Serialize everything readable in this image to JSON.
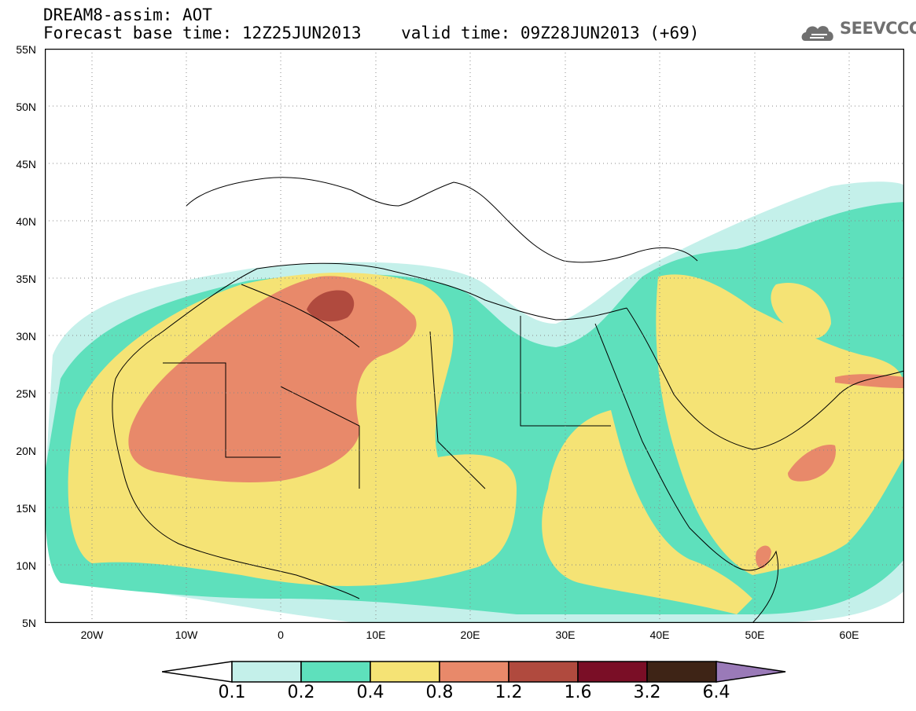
{
  "title": {
    "line1": "DREAM8-assim: AOT",
    "line2": "Forecast base time: 12Z25JUN2013    valid time: 09Z28JUN2013 (+69)"
  },
  "logo": {
    "text": "SEEVCCC",
    "icon": "cloud-icon"
  },
  "map": {
    "projection": "lat-lon",
    "lon_range": [
      -25,
      65
    ],
    "lat_range": [
      5,
      55
    ],
    "lat_ticks": [
      "55N",
      "50N",
      "45N",
      "40N",
      "35N",
      "30N",
      "25N",
      "20N",
      "15N",
      "10N",
      "5N"
    ],
    "lon_ticks": [
      "20W",
      "10W",
      "0",
      "10E",
      "20E",
      "30E",
      "40E",
      "50E",
      "60E"
    ],
    "grid": "dotted"
  },
  "colorbar": {
    "labels": [
      "0.1",
      "0.2",
      "0.4",
      "0.8",
      "1.2",
      "1.6",
      "3.2",
      "6.4"
    ],
    "colors": [
      "#c4f0ea",
      "#5ee0bc",
      "#f5e375",
      "#e8896a",
      "#b04a3e",
      "#7a0e26",
      "#3e2416",
      "#9a7ab8"
    ]
  }
}
